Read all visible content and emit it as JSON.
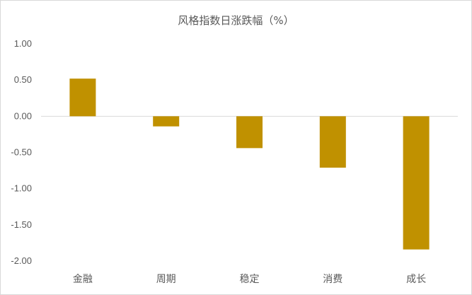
{
  "chart_data": {
    "type": "bar",
    "title": "风格指数日涨跌幅（%）",
    "categories": [
      "金融",
      "周期",
      "稳定",
      "消费",
      "成长"
    ],
    "values": [
      0.52,
      -0.14,
      -0.44,
      -0.71,
      -1.84
    ],
    "ylim": [
      -2.0,
      1.0
    ],
    "yticks": [
      "1.00",
      "0.50",
      "0.00",
      "-0.50",
      "-1.00",
      "-1.50",
      "-2.00"
    ],
    "xlabel": "",
    "ylabel": "",
    "bar_color": "#c09100",
    "grid": false,
    "legend": "none"
  }
}
